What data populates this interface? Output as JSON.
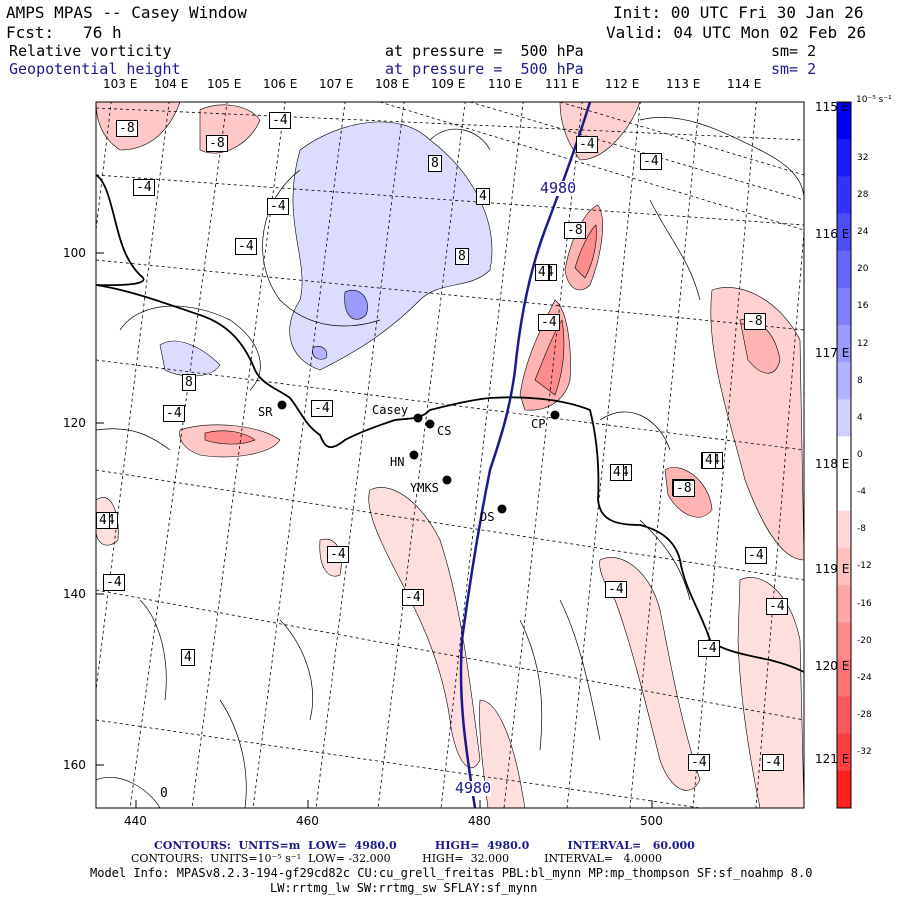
{
  "header": {
    "title": "AMPS MPAS -- Casey Window",
    "init": "Init: 00 UTC Fri 30 Jan 26",
    "fcst": "Fcst:   76 h",
    "valid": "Valid: 04 UTC Mon 02 Feb 26",
    "field1": "Relative vorticity",
    "field1_level": "at pressure =  500 hPa",
    "field1_sm": "sm= 2",
    "field2": "Geopotential height",
    "field2_level": "at pressure =  500 hPa",
    "field2_sm": "sm= 2"
  },
  "top_lon_labels": [
    "103 E",
    "104 E",
    "105 E",
    "106 E",
    "107 E",
    "108 E",
    "109 E",
    "110 E",
    "111 E",
    "112 E",
    "113 E",
    "114 E"
  ],
  "right_lon_labels": [
    "115 E",
    "116 E",
    "117 E",
    "118 E",
    "119 E",
    "120 E",
    "121 E"
  ],
  "x_axis": {
    "ticks": [
      "440",
      "460",
      "480",
      "500"
    ]
  },
  "y_axis": {
    "ticks": [
      "100",
      "120",
      "140",
      "160"
    ]
  },
  "colorbar": {
    "unit": "10⁻⁵ s⁻¹",
    "labels": [
      "32",
      "28",
      "24",
      "20",
      "16",
      "12",
      "8",
      "4",
      "0",
      "-4",
      "-8",
      "-12",
      "-16",
      "-20",
      "-24",
      "-28",
      "-32"
    ],
    "colors": [
      "#0000ff",
      "#1a1aff",
      "#3333ff",
      "#4d4dff",
      "#6666ff",
      "#8080ff",
      "#9999ff",
      "#b3b3ff",
      "#d0d0ff",
      "#ffffff",
      "#ffffff",
      "#ffd9d9",
      "#ffc0c0",
      "#ffa6a6",
      "#ff8c8c",
      "#ff7272",
      "#ff5959",
      "#ff3f3f",
      "#ff2020"
    ]
  },
  "stations": [
    {
      "name": "Casey"
    },
    {
      "name": "CS"
    },
    {
      "name": "SR"
    },
    {
      "name": "HN"
    },
    {
      "name": "YMKS"
    },
    {
      "name": "DS"
    },
    {
      "name": "CP"
    }
  ],
  "height_labels": [
    "4980",
    "4980"
  ],
  "vort_labels": [
    "-8",
    "-4",
    "-8",
    "-4",
    "-4",
    "-4",
    "-4",
    "-4",
    "-8",
    "-4",
    "-4",
    "-8",
    "-8",
    "-4",
    "-4",
    "-4",
    "-4",
    "-4",
    "-4",
    "-4",
    "-4",
    "-4",
    "-4",
    "-4",
    "-8",
    "-4",
    "-4",
    "-4",
    "0",
    "8",
    "8",
    "8",
    "8",
    "4",
    "4",
    "4",
    "4",
    "4",
    "4",
    "4"
  ],
  "footer": {
    "line1": "CONTOURS:  UNITS=m  LOW=  4980.0          HIGH=  4980.0          INTERVAL=   60.000",
    "line2": "CONTOURS:  UNITS=10⁻⁵ s⁻¹  LOW= -32.000         HIGH=  32.000          INTERVAL=   4.0000",
    "line3": "Model Info: MPASv8.2.3-194-gf29cd82c CU:cu_grell_freitas PBL:bl_mynn MP:mp_thompson SF:sf_noahmp 8.0",
    "line4": "LW:rrtmg_lw SW:rrtmg_sw SFLAY:sf_mynn"
  }
}
